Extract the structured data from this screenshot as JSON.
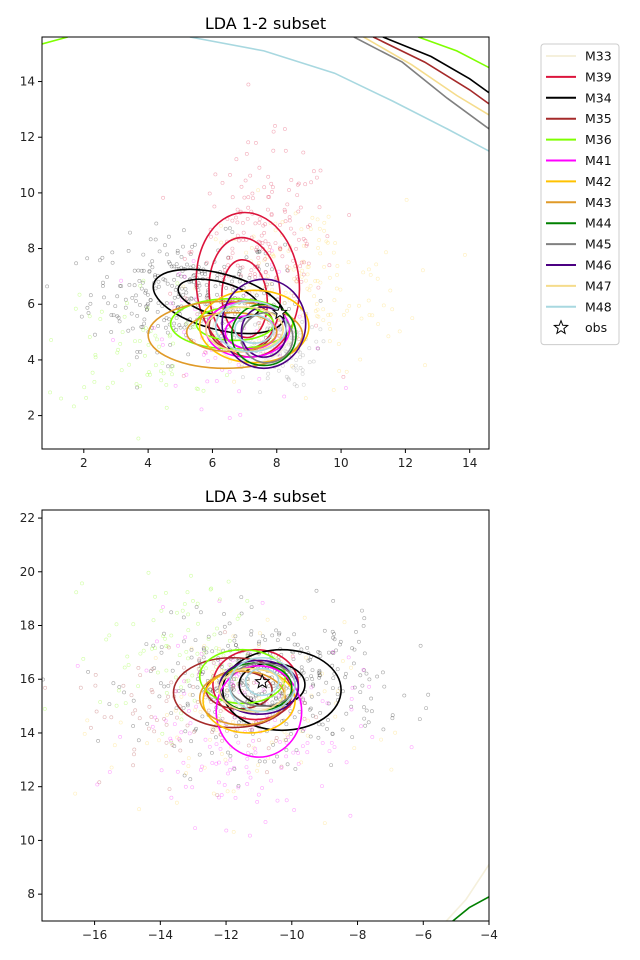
{
  "chart_data": [
    {
      "type": "scatter",
      "title": "LDA 1-2 subset",
      "xlabel": "",
      "ylabel": "",
      "xlim": [
        0.7,
        14.6
      ],
      "ylim": [
        0.8,
        15.6
      ],
      "xticks": [
        2,
        4,
        6,
        8,
        10,
        12,
        14
      ],
      "yticks": [
        2,
        4,
        6,
        8,
        10,
        12,
        14
      ],
      "obs": {
        "x": 8.1,
        "y": 5.7
      },
      "clouds": [
        {
          "color": "#000000",
          "cx": 5.2,
          "cy": 6.4,
          "sx": 1.5,
          "sy": 1.0,
          "n": 300
        },
        {
          "color": "#dc143c",
          "cx": 7.6,
          "cy": 8.0,
          "sx": 1.1,
          "sy": 1.8,
          "n": 200
        },
        {
          "color": "#ffd23f",
          "cx": 8.8,
          "cy": 6.5,
          "sx": 1.6,
          "sy": 1.6,
          "n": 150
        },
        {
          "color": "#7fff00",
          "cx": 4.0,
          "cy": 4.6,
          "sx": 1.6,
          "sy": 1.2,
          "n": 80
        },
        {
          "color": "#808080",
          "cx": 7.8,
          "cy": 4.4,
          "sx": 0.7,
          "sy": 0.7,
          "n": 120
        },
        {
          "color": "#ff00ff",
          "cx": 6.5,
          "cy": 4.5,
          "sx": 1.6,
          "sy": 1.6,
          "n": 60
        }
      ],
      "series": [
        {
          "name": "M33",
          "color": "#f5f0dc",
          "contours": [
            {
              "cx": 7.2,
              "cy": 5.0,
              "rx": 1.2,
              "ry": 1.1,
              "rot": 0
            }
          ]
        },
        {
          "name": "M39",
          "color": "#dc143c",
          "contours": [
            {
              "cx": 7.1,
              "cy": 6.7,
              "rx": 1.6,
              "ry": 2.6,
              "rot": 5
            },
            {
              "cx": 7.0,
              "cy": 6.4,
              "rx": 1.1,
              "ry": 2.0,
              "rot": 5
            },
            {
              "cx": 7.0,
              "cy": 6.2,
              "rx": 0.7,
              "ry": 1.4,
              "rot": 5
            }
          ]
        },
        {
          "name": "M34",
          "color": "#000000",
          "contours": [
            {
              "cx": 6.2,
              "cy": 6.1,
              "rx": 2.1,
              "ry": 1.0,
              "rot": -15
            },
            {
              "cx": 6.2,
              "cy": 6.2,
              "rx": 1.3,
              "ry": 0.6,
              "rot": -15
            }
          ]
        },
        {
          "name": "M35",
          "color": "#a52a2a",
          "contours": [
            {
              "cx": 6.9,
              "cy": 5.2,
              "rx": 1.0,
              "ry": 0.9,
              "rot": 0
            }
          ]
        },
        {
          "name": "M36",
          "color": "#7fff00",
          "contours": [
            {
              "cx": 6.6,
              "cy": 5.3,
              "rx": 1.9,
              "ry": 0.9,
              "rot": 0
            },
            {
              "cx": 6.7,
              "cy": 5.3,
              "rx": 1.2,
              "ry": 0.6,
              "rot": 0
            }
          ]
        },
        {
          "name": "M41",
          "color": "#ff00ff",
          "contours": [
            {
              "cx": 7.1,
              "cy": 5.1,
              "rx": 1.3,
              "ry": 1.0,
              "rot": 0
            },
            {
              "cx": 7.2,
              "cy": 5.0,
              "rx": 0.8,
              "ry": 0.6,
              "rot": 0
            }
          ]
        },
        {
          "name": "M42",
          "color": "#ffc200",
          "contours": [
            {
              "cx": 7.3,
              "cy": 5.2,
              "rx": 1.7,
              "ry": 1.3,
              "rot": 0
            }
          ]
        },
        {
          "name": "M43",
          "color": "#e09a28",
          "contours": [
            {
              "cx": 6.4,
              "cy": 4.9,
              "rx": 2.4,
              "ry": 1.2,
              "rot": 0
            },
            {
              "cx": 6.6,
              "cy": 5.0,
              "rx": 1.4,
              "ry": 0.7,
              "rot": 0
            }
          ]
        },
        {
          "name": "M44",
          "color": "#008000",
          "contours": [
            {
              "cx": 7.6,
              "cy": 4.9,
              "rx": 1.0,
              "ry": 1.1,
              "rot": 0
            }
          ]
        },
        {
          "name": "M45",
          "color": "#808080",
          "contours": [
            {
              "cx": 7.7,
              "cy": 4.8,
              "rx": 0.8,
              "ry": 0.9,
              "rot": 0
            }
          ]
        },
        {
          "name": "M46",
          "color": "#4b0082",
          "contours": [
            {
              "cx": 7.6,
              "cy": 5.3,
              "rx": 1.3,
              "ry": 1.6,
              "rot": 0
            },
            {
              "cx": 7.6,
              "cy": 5.0,
              "rx": 0.7,
              "ry": 0.9,
              "rot": 0
            }
          ]
        },
        {
          "name": "M47",
          "color": "#f5dc8c",
          "contours": [
            {
              "cx": 7.0,
              "cy": 5.1,
              "rx": 1.2,
              "ry": 0.8,
              "rot": 0
            }
          ]
        },
        {
          "name": "M48",
          "color": "#a8d8e0",
          "contours": [
            {
              "cx": 7.2,
              "cy": 5.2,
              "rx": 1.1,
              "ry": 0.9,
              "rot": 0
            },
            {
              "cx": 7.3,
              "cy": 5.1,
              "rx": 0.6,
              "ry": 0.5,
              "rot": 0
            }
          ]
        }
      ],
      "edge_lines": [
        {
          "name": "M48",
          "color": "#a8d8e0",
          "points": [
            [
              5.3,
              15.6
            ],
            [
              7.6,
              15.1
            ],
            [
              9.8,
              14.3
            ],
            [
              11.6,
              13.3
            ],
            [
              13.3,
              12.3
            ],
            [
              14.6,
              11.5
            ]
          ]
        },
        {
          "name": "M45",
          "color": "#808080",
          "points": [
            [
              10.4,
              15.6
            ],
            [
              11.9,
              14.7
            ],
            [
              13.3,
              13.4
            ],
            [
              14.6,
              12.3
            ]
          ]
        },
        {
          "name": "M47",
          "color": "#f5dc8c",
          "points": [
            [
              10.7,
              15.6
            ],
            [
              12.2,
              14.6
            ],
            [
              13.6,
              13.5
            ],
            [
              14.6,
              12.8
            ]
          ]
        },
        {
          "name": "M35",
          "color": "#a52a2a",
          "points": [
            [
              11.0,
              15.6
            ],
            [
              12.6,
              14.7
            ],
            [
              14.0,
              13.7
            ],
            [
              14.6,
              13.2
            ]
          ]
        },
        {
          "name": "M34",
          "color": "#000000",
          "points": [
            [
              11.3,
              15.6
            ],
            [
              12.8,
              14.9
            ],
            [
              14.0,
              14.1
            ],
            [
              14.6,
              13.6
            ]
          ]
        },
        {
          "name": "M36",
          "color": "#7fff00",
          "points": [
            [
              12.4,
              15.6
            ],
            [
              13.6,
              15.1
            ],
            [
              14.6,
              14.5
            ]
          ]
        },
        {
          "name": "M36",
          "color": "#7fff00",
          "points": [
            [
              0.7,
              15.35
            ],
            [
              1.5,
              15.6
            ]
          ]
        }
      ]
    },
    {
      "type": "scatter",
      "title": "LDA 3-4 subset",
      "xlabel": "",
      "ylabel": "",
      "xlim": [
        -17.6,
        -4.0
      ],
      "ylim": [
        7.0,
        22.3
      ],
      "xticks": [
        -16,
        -14,
        -12,
        -10,
        -8,
        -6,
        -4
      ],
      "yticks": [
        8,
        10,
        12,
        14,
        16,
        18,
        20,
        22
      ],
      "obs": {
        "x": -10.9,
        "y": 15.9
      },
      "clouds": [
        {
          "color": "#000000",
          "cx": -10.8,
          "cy": 15.8,
          "sx": 1.8,
          "sy": 1.2,
          "n": 400
        },
        {
          "color": "#ff00ff",
          "cx": -11.4,
          "cy": 14.2,
          "sx": 1.7,
          "sy": 1.8,
          "n": 150
        },
        {
          "color": "#ffd23f",
          "cx": -12.0,
          "cy": 14.5,
          "sx": 1.8,
          "sy": 1.8,
          "n": 100
        },
        {
          "color": "#7fff00",
          "cx": -13.2,
          "cy": 17.0,
          "sx": 1.3,
          "sy": 1.4,
          "n": 100
        },
        {
          "color": "#a52a2a",
          "cx": -12.8,
          "cy": 15.0,
          "sx": 1.8,
          "sy": 1.3,
          "n": 100
        }
      ],
      "series": [
        {
          "name": "M33",
          "color": "#f5f0dc",
          "contours": [
            {
              "cx": -11.0,
              "cy": 15.8,
              "rx": 1.2,
              "ry": 0.9,
              "rot": 0
            }
          ]
        },
        {
          "name": "M39",
          "color": "#dc143c",
          "contours": [
            {
              "cx": -11.1,
              "cy": 15.8,
              "rx": 1.3,
              "ry": 1.3,
              "rot": 0
            }
          ]
        },
        {
          "name": "M34",
          "color": "#000000",
          "contours": [
            {
              "cx": -10.3,
              "cy": 15.6,
              "rx": 1.8,
              "ry": 1.5,
              "rot": 0
            },
            {
              "cx": -10.6,
              "cy": 15.8,
              "rx": 1.0,
              "ry": 0.8,
              "rot": 0
            }
          ]
        },
        {
          "name": "M35",
          "color": "#a52a2a",
          "contours": [
            {
              "cx": -11.8,
              "cy": 15.5,
              "rx": 1.8,
              "ry": 1.3,
              "rot": 0
            },
            {
              "cx": -11.6,
              "cy": 15.6,
              "rx": 1.0,
              "ry": 0.7,
              "rot": 0
            }
          ]
        },
        {
          "name": "M36",
          "color": "#7fff00",
          "contours": [
            {
              "cx": -11.5,
              "cy": 16.1,
              "rx": 1.3,
              "ry": 1.0,
              "rot": 0
            }
          ]
        },
        {
          "name": "M41",
          "color": "#ff00ff",
          "contours": [
            {
              "cx": -11.0,
              "cy": 14.8,
              "rx": 1.3,
              "ry": 1.7,
              "rot": 0
            }
          ]
        },
        {
          "name": "M42",
          "color": "#ffc200",
          "contours": [
            {
              "cx": -11.3,
              "cy": 15.2,
              "rx": 1.4,
              "ry": 1.2,
              "rot": 0
            }
          ]
        },
        {
          "name": "M43",
          "color": "#e09a28",
          "contours": [
            {
              "cx": -11.5,
              "cy": 15.3,
              "rx": 1.3,
              "ry": 1.0,
              "rot": 0
            }
          ]
        },
        {
          "name": "M44",
          "color": "#008000",
          "contours": [
            {
              "cx": -11.1,
              "cy": 15.7,
              "rx": 1.1,
              "ry": 0.9,
              "rot": 0
            }
          ]
        },
        {
          "name": "M45",
          "color": "#808080",
          "contours": [
            {
              "cx": -10.9,
              "cy": 15.8,
              "rx": 1.0,
              "ry": 0.8,
              "rot": 0
            }
          ]
        },
        {
          "name": "M46",
          "color": "#4b0082",
          "contours": [
            {
              "cx": -11.0,
              "cy": 15.7,
              "rx": 1.2,
              "ry": 1.0,
              "rot": 0
            }
          ]
        },
        {
          "name": "M47",
          "color": "#f5dc8c",
          "contours": [
            {
              "cx": -11.2,
              "cy": 15.6,
              "rx": 1.0,
              "ry": 0.8,
              "rot": 0
            }
          ]
        },
        {
          "name": "M48",
          "color": "#a8d8e0",
          "contours": [
            {
              "cx": -10.9,
              "cy": 15.8,
              "rx": 1.0,
              "ry": 1.0,
              "rot": 0
            },
            {
              "cx": -10.9,
              "cy": 15.9,
              "rx": 0.5,
              "ry": 0.5,
              "rot": 0
            }
          ]
        }
      ],
      "edge_lines": [
        {
          "name": "M33",
          "color": "#f5f0dc",
          "points": [
            [
              -5.3,
              7.0
            ],
            [
              -4.7,
              7.8
            ],
            [
              -4.0,
              9.1
            ]
          ]
        },
        {
          "name": "M44",
          "color": "#008000",
          "points": [
            [
              -5.1,
              7.0
            ],
            [
              -4.6,
              7.5
            ],
            [
              -4.0,
              7.9
            ]
          ]
        }
      ]
    }
  ],
  "legend": {
    "placement": "outside-right-top",
    "entries": [
      {
        "label": "M33",
        "color": "#f5f0dc",
        "marker": "line"
      },
      {
        "label": "M39",
        "color": "#dc143c",
        "marker": "line"
      },
      {
        "label": "M34",
        "color": "#000000",
        "marker": "line"
      },
      {
        "label": "M35",
        "color": "#a52a2a",
        "marker": "line"
      },
      {
        "label": "M36",
        "color": "#7fff00",
        "marker": "line"
      },
      {
        "label": "M41",
        "color": "#ff00ff",
        "marker": "line"
      },
      {
        "label": "M42",
        "color": "#ffc200",
        "marker": "line"
      },
      {
        "label": "M43",
        "color": "#e09a28",
        "marker": "line"
      },
      {
        "label": "M44",
        "color": "#008000",
        "marker": "line"
      },
      {
        "label": "M45",
        "color": "#808080",
        "marker": "line"
      },
      {
        "label": "M46",
        "color": "#4b0082",
        "marker": "line"
      },
      {
        "label": "M47",
        "color": "#f5dc8c",
        "marker": "line"
      },
      {
        "label": "M48",
        "color": "#a8d8e0",
        "marker": "line"
      },
      {
        "label": "obs",
        "color": "#000000",
        "marker": "star"
      }
    ]
  }
}
